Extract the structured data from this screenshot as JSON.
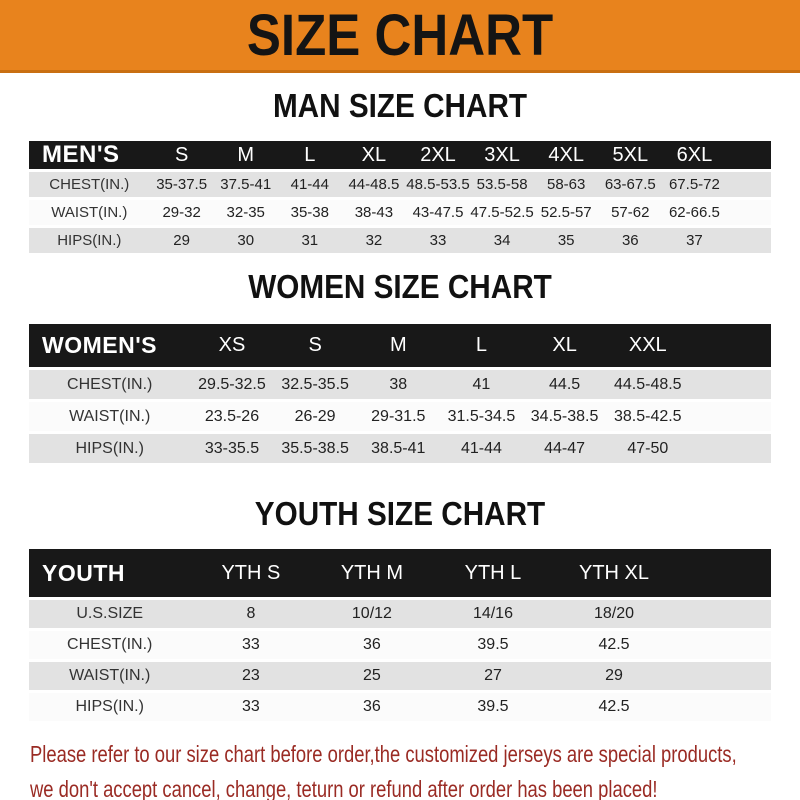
{
  "banner": {
    "title": "SIZE CHART"
  },
  "sections": [
    {
      "id": "men",
      "heading": "MAN SIZE CHART",
      "table": {
        "label": "MEN'S",
        "sizes": [
          "S",
          "M",
          "L",
          "XL",
          "2XL",
          "3XL",
          "4XL",
          "5XL",
          "6XL"
        ],
        "rows": [
          {
            "label": "CHEST(IN.)",
            "values": [
              "35-37.5",
              "37.5-41",
              "41-44",
              "44-48.5",
              "48.5-53.5",
              "53.5-58",
              "58-63",
              "63-67.5",
              "67.5-72"
            ]
          },
          {
            "label": "WAIST(IN.)",
            "values": [
              "29-32",
              "32-35",
              "35-38",
              "38-43",
              "43-47.5",
              "47.5-52.5",
              "52.5-57",
              "57-62",
              "62-66.5"
            ]
          },
          {
            "label": "HIPS(IN.)",
            "values": [
              "29",
              "30",
              "31",
              "32",
              "33",
              "34",
              "35",
              "36",
              "37"
            ]
          }
        ]
      }
    },
    {
      "id": "women",
      "heading": "WOMEN SIZE CHART",
      "table": {
        "label": "WOMEN'S",
        "sizes": [
          "XS",
          "S",
          "M",
          "L",
          "XL",
          "XXL"
        ],
        "rows": [
          {
            "label": "CHEST(IN.)",
            "values": [
              "29.5-32.5",
              "32.5-35.5",
              "38",
              "41",
              "44.5",
              "44.5-48.5"
            ]
          },
          {
            "label": "WAIST(IN.)",
            "values": [
              "23.5-26",
              "26-29",
              "29-31.5",
              "31.5-34.5",
              "34.5-38.5",
              "38.5-42.5"
            ]
          },
          {
            "label": "HIPS(IN.)",
            "values": [
              "33-35.5",
              "35.5-38.5",
              "38.5-41",
              "41-44",
              "44-47",
              "47-50"
            ]
          }
        ]
      }
    },
    {
      "id": "youth",
      "heading": "YOUTH SIZE CHART",
      "table": {
        "label": "YOUTH",
        "sizes": [
          "YTH S",
          "YTH M",
          "YTH L",
          "YTH XL"
        ],
        "rows": [
          {
            "label": "U.S.SIZE",
            "values": [
              "8",
              "10/12",
              "14/16",
              "18/20"
            ]
          },
          {
            "label": "CHEST(IN.)",
            "values": [
              "33",
              "36",
              "39.5",
              "42.5"
            ]
          },
          {
            "label": "WAIST(IN.)",
            "values": [
              "23",
              "25",
              "27",
              "29"
            ]
          },
          {
            "label": "HIPS(IN.)",
            "values": [
              "33",
              "36",
              "39.5",
              "42.5"
            ]
          }
        ]
      }
    }
  ],
  "footer": {
    "lines": [
      "Please refer to our size chart before order,the customized jerseys are special products,",
      "we don't accept cancel, change, teturn or refund after order has been placed!"
    ]
  },
  "colors": {
    "banner_bg": "#E8831D",
    "bar_bg": "#181818",
    "row_alt_bg": "#E2E2E2",
    "footer_text": "#9A2B24"
  }
}
